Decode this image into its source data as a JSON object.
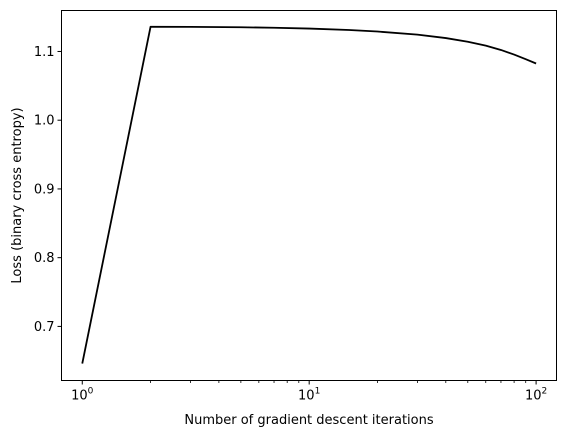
{
  "chart_data": {
    "type": "line",
    "title": "",
    "xlabel": "Number of gradient descent iterations",
    "ylabel": "Loss (binary cross entropy)",
    "xscale": "log",
    "xlim": [
      0.81,
      123
    ],
    "ylim": [
      0.6213,
      1.1596
    ],
    "grid": false,
    "line_color": "#000000",
    "x_major_ticks": [
      {
        "value": 1,
        "base": "10",
        "exp": "0"
      },
      {
        "value": 10,
        "base": "10",
        "exp": "1"
      },
      {
        "value": 100,
        "base": "10",
        "exp": "2"
      }
    ],
    "x_minor_ticks": [
      2,
      3,
      4,
      5,
      6,
      7,
      8,
      9,
      20,
      30,
      40,
      50,
      60,
      70,
      80,
      90
    ],
    "y_ticks": [
      {
        "value": 0.7,
        "label": "0.7"
      },
      {
        "value": 0.8,
        "label": "0.8"
      },
      {
        "value": 0.9,
        "label": "0.9"
      },
      {
        "value": 1.0,
        "label": "1.0"
      },
      {
        "value": 1.1,
        "label": "1.1"
      }
    ],
    "x": [
      1,
      2,
      3,
      5,
      7,
      10,
      15,
      20,
      30,
      40,
      50,
      60,
      70,
      80,
      90,
      100
    ],
    "y": [
      0.646,
      1.136,
      1.1358,
      1.1352,
      1.1345,
      1.1333,
      1.1312,
      1.129,
      1.1245,
      1.1195,
      1.1142,
      1.1085,
      1.1022,
      1.0955,
      1.0888,
      1.0825
    ]
  }
}
